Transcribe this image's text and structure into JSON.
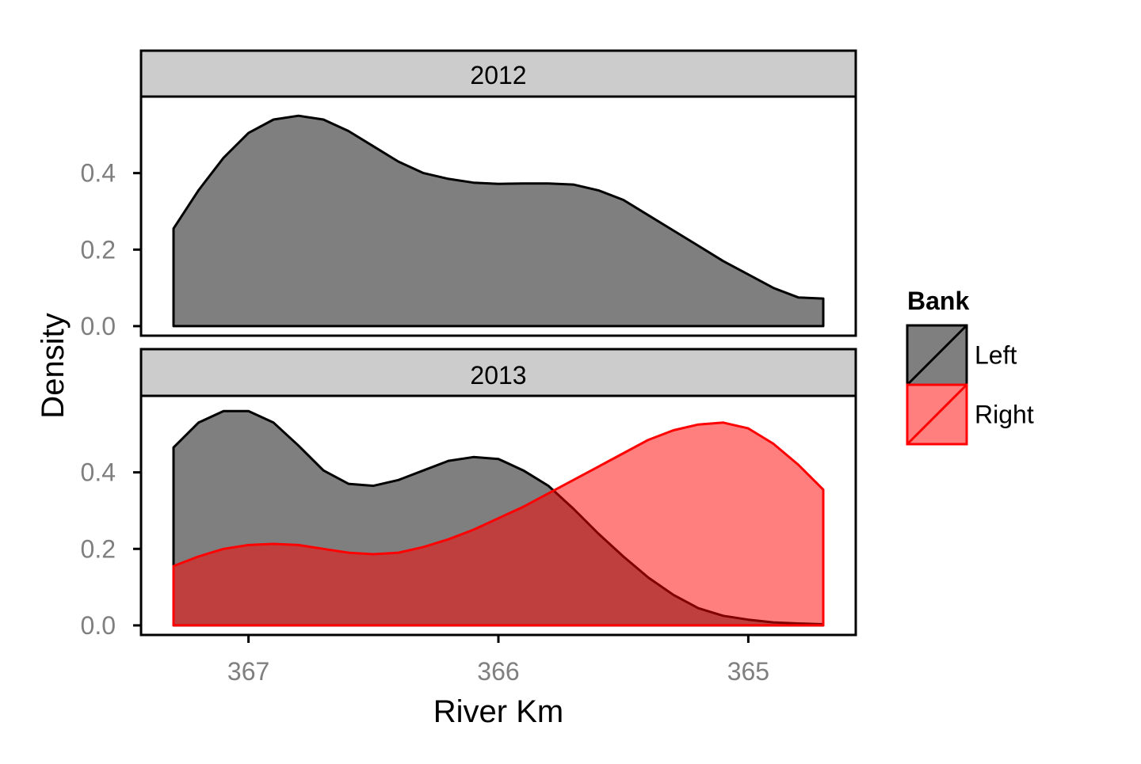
{
  "chart_data": {
    "type": "area",
    "subtype": "density",
    "xlabel": "River Km",
    "ylabel": "Density",
    "x_reversed": true,
    "xlim": [
      367.43,
      364.57
    ],
    "x_ticks": [
      367,
      366,
      365
    ],
    "ylim": [
      -0.025,
      0.6
    ],
    "y_ticks": [
      0.0,
      0.2,
      0.4
    ],
    "y_tick_labels": [
      "0.0",
      "0.2",
      "0.4"
    ],
    "legend": {
      "title": "Bank",
      "placement": "right",
      "entries": [
        {
          "name": "Left",
          "fill": "#7f7f7f",
          "stroke": "#000000"
        },
        {
          "name": "Right",
          "fill": "#ff7f7f",
          "stroke": "#ff0000"
        }
      ]
    },
    "panels": [
      {
        "strip": "2012",
        "series": [
          {
            "name": "Left",
            "x": [
              367.3,
              367.2,
              367.1,
              367.0,
              366.9,
              366.8,
              366.7,
              366.6,
              366.5,
              366.4,
              366.3,
              366.2,
              366.1,
              366.0,
              365.9,
              365.8,
              365.7,
              365.6,
              365.5,
              365.4,
              365.3,
              365.2,
              365.1,
              365.0,
              364.9,
              364.8,
              364.7
            ],
            "y": [
              0.255,
              0.355,
              0.44,
              0.505,
              0.54,
              0.55,
              0.54,
              0.51,
              0.47,
              0.43,
              0.4,
              0.385,
              0.375,
              0.372,
              0.373,
              0.373,
              0.37,
              0.355,
              0.33,
              0.29,
              0.25,
              0.21,
              0.17,
              0.135,
              0.1,
              0.075,
              0.072
            ]
          }
        ]
      },
      {
        "strip": "2013",
        "series": [
          {
            "name": "Left",
            "x": [
              367.3,
              367.2,
              367.1,
              367.0,
              366.9,
              366.8,
              366.7,
              366.6,
              366.5,
              366.4,
              366.3,
              366.2,
              366.1,
              366.0,
              365.9,
              365.8,
              365.7,
              365.6,
              365.5,
              365.4,
              365.3,
              365.2,
              365.1,
              365.0,
              364.9,
              364.8,
              364.7
            ],
            "y": [
              0.465,
              0.53,
              0.56,
              0.56,
              0.53,
              0.47,
              0.405,
              0.37,
              0.365,
              0.38,
              0.405,
              0.43,
              0.44,
              0.435,
              0.405,
              0.365,
              0.305,
              0.24,
              0.18,
              0.125,
              0.08,
              0.045,
              0.025,
              0.015,
              0.008,
              0.005,
              0.003
            ]
          },
          {
            "name": "Right",
            "x": [
              367.3,
              367.2,
              367.1,
              367.0,
              366.9,
              366.8,
              366.7,
              366.6,
              366.5,
              366.4,
              366.3,
              366.2,
              366.1,
              366.0,
              365.9,
              365.8,
              365.7,
              365.6,
              365.5,
              365.4,
              365.3,
              365.2,
              365.1,
              365.0,
              364.9,
              364.8,
              364.7
            ],
            "y": [
              0.155,
              0.18,
              0.2,
              0.21,
              0.213,
              0.21,
              0.2,
              0.19,
              0.186,
              0.19,
              0.205,
              0.225,
              0.25,
              0.28,
              0.31,
              0.345,
              0.38,
              0.415,
              0.45,
              0.485,
              0.51,
              0.525,
              0.53,
              0.515,
              0.475,
              0.42,
              0.355
            ]
          }
        ]
      }
    ]
  }
}
